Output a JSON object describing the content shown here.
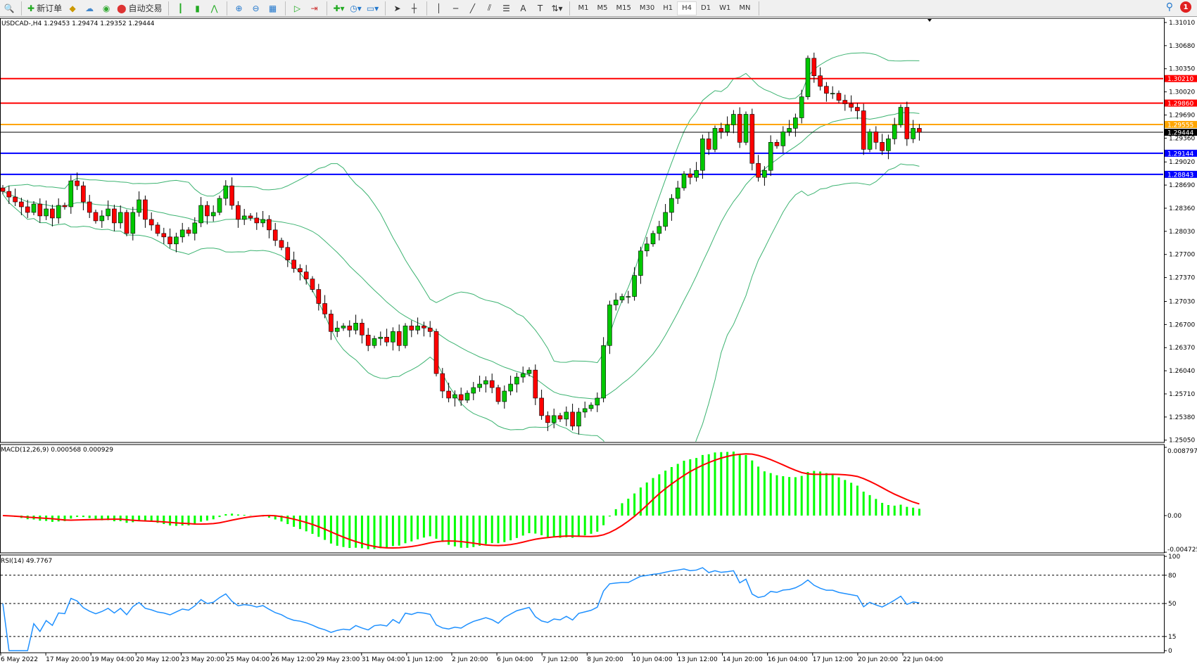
{
  "toolbar": {
    "new_order_label": "新订单",
    "auto_trading_label": "自动交易",
    "timeframes": [
      "M1",
      "M5",
      "M15",
      "M30",
      "H1",
      "H4",
      "D1",
      "W1",
      "MN"
    ],
    "active_timeframe": "H4",
    "notification_count": "1"
  },
  "chart": {
    "symbol_line": "USDCAD-,H4  1.29453 1.29474 1.29352 1.29444",
    "price_axis": [
      "1.31010",
      "1.30680",
      "1.30350",
      "1.30020",
      "1.29690",
      "1.29360",
      "1.29020",
      "1.28690",
      "1.28360",
      "1.28030",
      "1.27700",
      "1.27370",
      "1.27030",
      "1.26700",
      "1.26370",
      "1.26040",
      "1.25710",
      "1.25380",
      "1.25050"
    ],
    "levels": [
      {
        "price": "1.30210",
        "color": "#ff0000"
      },
      {
        "price": "1.29860",
        "color": "#ff0000"
      },
      {
        "price": "1.29555",
        "color": "#ffa500"
      },
      {
        "price": "1.29444",
        "color": "#000000"
      },
      {
        "price": "1.29144",
        "color": "#0000ff"
      },
      {
        "price": "1.28843",
        "color": "#0000ff"
      }
    ],
    "time_axis": [
      "6 May 2022",
      "17 May 20:00",
      "19 May 04:00",
      "20 May 12:00",
      "23 May 20:00",
      "25 May 04:00",
      "26 May 12:00",
      "29 May 23:00",
      "31 May 04:00",
      "1 Jun 12:00",
      "2 Jun 20:00",
      "6 Jun 04:00",
      "7 Jun 12:00",
      "8 Jun 20:00",
      "10 Jun 04:00",
      "13 Jun 12:00",
      "14 Jun 20:00",
      "16 Jun 04:00",
      "17 Jun 12:00",
      "20 Jun 20:00",
      "22 Jun 04:00"
    ],
    "macd_label": "MACD(12,26,9) 0.000568 0.000929",
    "macd_axis": [
      "0.008797",
      "0.00",
      "-0.004725"
    ],
    "rsi_label": "RSI(14) 49.7767",
    "rsi_axis": [
      "100",
      "80",
      "50",
      "15",
      "0"
    ],
    "colors": {
      "up": "#00c800",
      "down": "#ff0000",
      "bands": "#3cb371",
      "macd_hist": "#00ff00",
      "macd_signal": "#ff0000",
      "rsi": "#1e90ff"
    }
  },
  "chart_data": {
    "type": "candlestick",
    "symbol": "USDCAD-",
    "timeframe": "H4",
    "ylim": [
      1.2505,
      1.3101
    ],
    "close": [
      1.286,
      1.2852,
      1.2845,
      1.2838,
      1.283,
      1.2842,
      1.2825,
      1.2835,
      1.2822,
      1.284,
      1.2838,
      1.2875,
      1.2868,
      1.2845,
      1.283,
      1.2818,
      1.2825,
      1.2835,
      1.2815,
      1.283,
      1.28,
      1.283,
      1.2848,
      1.282,
      1.2812,
      1.28,
      1.2795,
      1.2785,
      1.2795,
      1.2805,
      1.28,
      1.2815,
      1.284,
      1.2825,
      1.283,
      1.285,
      1.2868,
      1.284,
      1.282,
      1.2825,
      1.2822,
      1.2815,
      1.282,
      1.2805,
      1.279,
      1.278,
      1.2762,
      1.275,
      1.2745,
      1.2735,
      1.272,
      1.27,
      1.2685,
      1.266,
      1.2665,
      1.2668,
      1.2662,
      1.2672,
      1.2655,
      1.264,
      1.265,
      1.2652,
      1.2645,
      1.266,
      1.264,
      1.2668,
      1.2662,
      1.2668,
      1.2665,
      1.266,
      1.26,
      1.2575,
      1.2565,
      1.257,
      1.2562,
      1.2572,
      1.258,
      1.2585,
      1.259,
      1.258,
      1.256,
      1.2575,
      1.2585,
      1.2595,
      1.26,
      1.2605,
      1.2565,
      1.254,
      1.253,
      1.254,
      1.2535,
      1.2545,
      1.2525,
      1.2545,
      1.255,
      1.2555,
      1.2565,
      1.264,
      1.2698,
      1.2705,
      1.271,
      1.271,
      1.274,
      1.2775,
      1.2785,
      1.28,
      1.281,
      1.283,
      1.285,
      1.2865,
      1.2885,
      1.288,
      1.289,
      1.2935,
      1.292,
      1.295,
      1.2945,
      1.2955,
      1.297,
      1.293,
      1.297,
      1.29,
      1.288,
      1.289,
      1.293,
      1.2925,
      1.2945,
      1.295,
      1.2965,
      1.2995,
      1.305,
      1.3025,
      1.301,
      1.3,
      1.3,
      1.299,
      1.2985,
      1.298,
      1.2975,
      1.292,
      1.2945,
      1.293,
      1.2918,
      1.2935,
      1.2955,
      1.298,
      1.2935,
      1.295,
      1.29444
    ],
    "indicators": [
      "Bollinger Bands(20,2)",
      "MACD(12,26,9)",
      "RSI(14)"
    ],
    "rsi_levels": [
      80,
      50,
      15
    ]
  }
}
